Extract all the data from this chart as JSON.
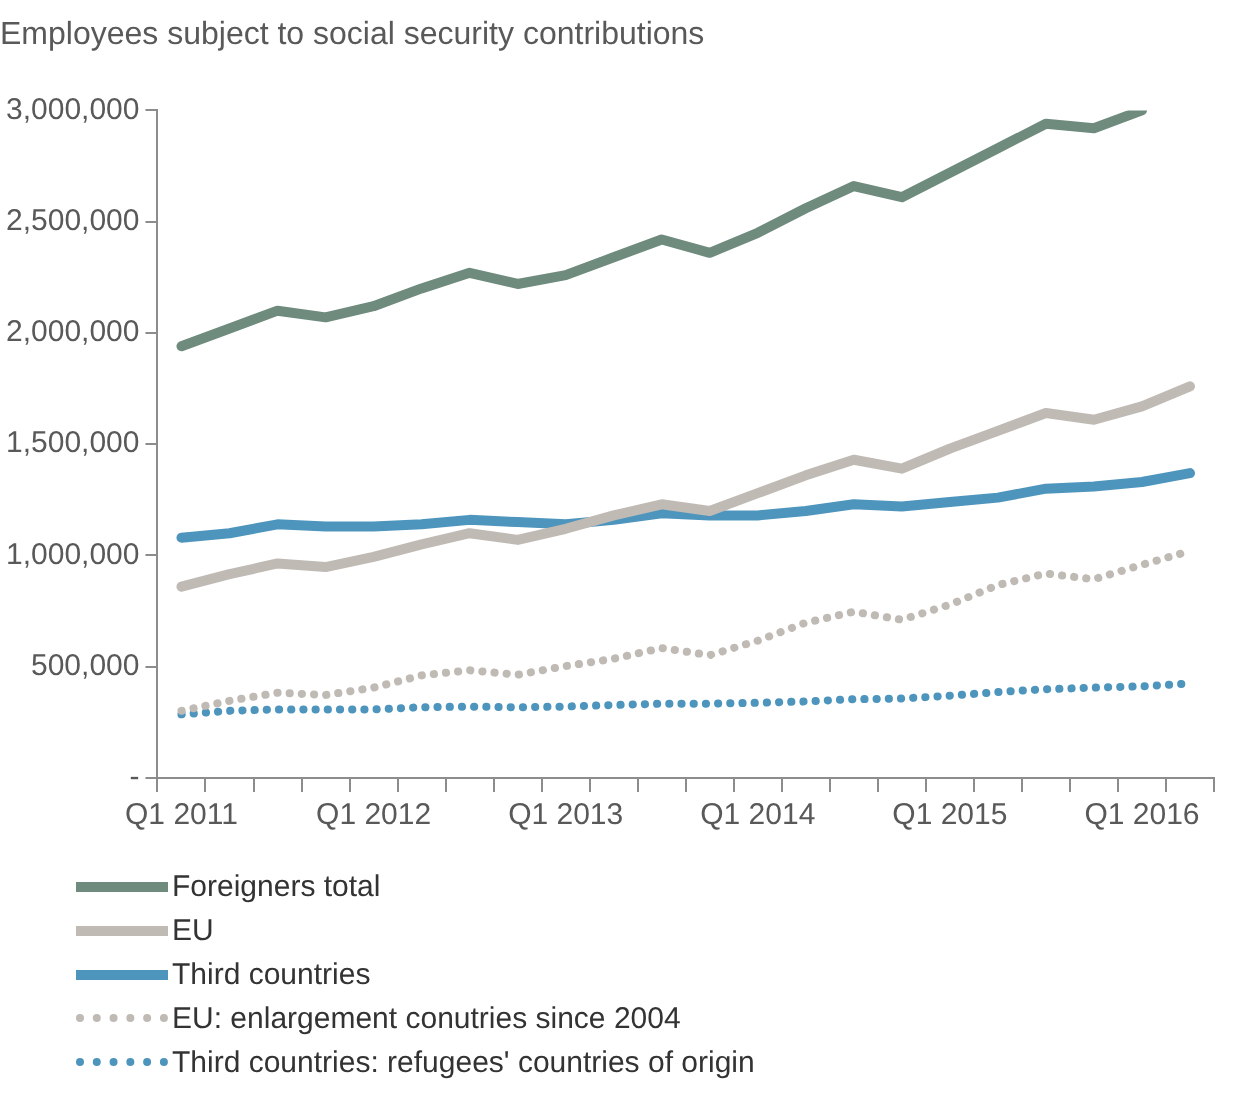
{
  "chart_data": {
    "type": "line",
    "title": "Employees subject to social security contributions",
    "categories": [
      "Q1 2011",
      null,
      null,
      null,
      "Q1 2012",
      null,
      null,
      null,
      "Q1 2013",
      null,
      null,
      null,
      "Q1 2014",
      null,
      null,
      null,
      "Q1 2015",
      null,
      null,
      null,
      "Q1 2016",
      null
    ],
    "ylim": [
      0,
      3000000
    ],
    "yticks": [
      {
        "value": 0,
        "label": "-"
      },
      {
        "value": 500000,
        "label": "500,000"
      },
      {
        "value": 1000000,
        "label": "1,000,000"
      },
      {
        "value": 1500000,
        "label": "1,500,000"
      },
      {
        "value": 2000000,
        "label": "2,000,000"
      },
      {
        "value": 2500000,
        "label": "2,500,000"
      },
      {
        "value": 3000000,
        "label": "3,000,000"
      }
    ],
    "legend": "bottom",
    "marker": "none",
    "series": [
      {
        "name": "Foreigners total",
        "color": "#6e8b7d",
        "line_style": "solid",
        "values": [
          1940000,
          2020000,
          2100000,
          2070000,
          2120000,
          2200000,
          2270000,
          2220000,
          2260000,
          2340000,
          2420000,
          2360000,
          2450000,
          2560000,
          2660000,
          2610000,
          2720000,
          2830000,
          2940000,
          2920000,
          3000000,
          null
        ]
      },
      {
        "name": "EU",
        "color": "#c0bab5",
        "line_style": "solid",
        "values": [
          860000,
          916000,
          964000,
          948000,
          994000,
          1050000,
          1100000,
          1070000,
          1120000,
          1180000,
          1230000,
          1200000,
          1280000,
          1360000,
          1430000,
          1390000,
          1480000,
          1560000,
          1640000,
          1610000,
          1670000,
          1760000
        ]
      },
      {
        "name": "Third countries",
        "color": "#4e95bd",
        "line_style": "solid",
        "values": [
          1080000,
          1100000,
          1140000,
          1130000,
          1130000,
          1140000,
          1160000,
          1150000,
          1140000,
          1160000,
          1190000,
          1180000,
          1180000,
          1200000,
          1230000,
          1220000,
          1240000,
          1260000,
          1300000,
          1310000,
          1330000,
          1370000
        ]
      },
      {
        "name": "EU: enlargement conutries since 2004",
        "color": "#c0bab5",
        "line_style": "dotted",
        "values": [
          302000,
          347000,
          383000,
          373000,
          406000,
          461000,
          484000,
          464000,
          503000,
          536000,
          584000,
          552000,
          617000,
          698000,
          747000,
          711000,
          779000,
          867000,
          919000,
          893000,
          958000,
          1020000
        ]
      },
      {
        "name": "Third countries: refugees' countries of origin",
        "color": "#4e95bd",
        "line_style": "dotted",
        "values": [
          286000,
          302000,
          308000,
          308000,
          308000,
          318000,
          321000,
          318000,
          321000,
          328000,
          334000,
          334000,
          338000,
          344000,
          354000,
          357000,
          370000,
          386000,
          399000,
          406000,
          412000,
          425000
        ]
      }
    ]
  }
}
